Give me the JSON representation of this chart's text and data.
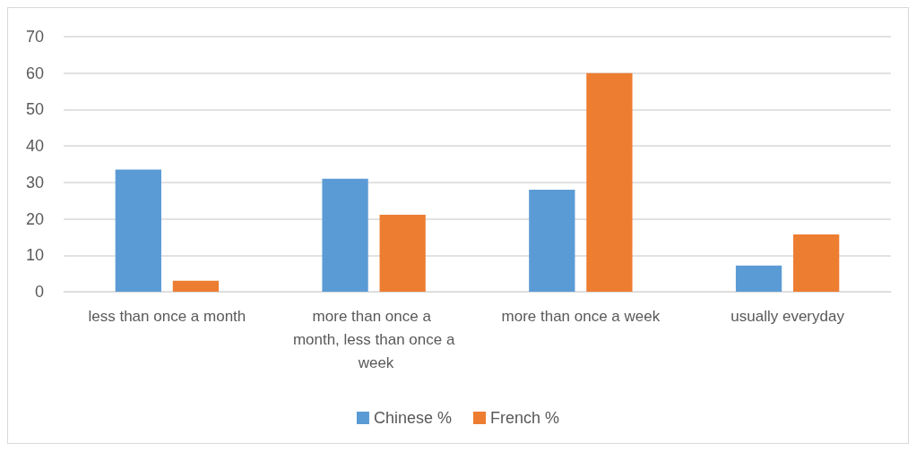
{
  "chart_data": {
    "type": "bar",
    "categories": [
      "less than once a month",
      "more than once a month, less than once a week",
      "more than once a week",
      "usually everyday"
    ],
    "series": [
      {
        "name": "Chinese %",
        "color": "#5b9bd5",
        "values": [
          33.5,
          31,
          28,
          7.2
        ]
      },
      {
        "name": "French %",
        "color": "#ed7d31",
        "values": [
          3,
          21.1,
          60,
          15.7
        ]
      }
    ],
    "ylim": [
      0,
      70
    ],
    "yticks": [
      0,
      10,
      20,
      30,
      40,
      50,
      60,
      70
    ],
    "grid": "y",
    "legend": "bottom"
  }
}
